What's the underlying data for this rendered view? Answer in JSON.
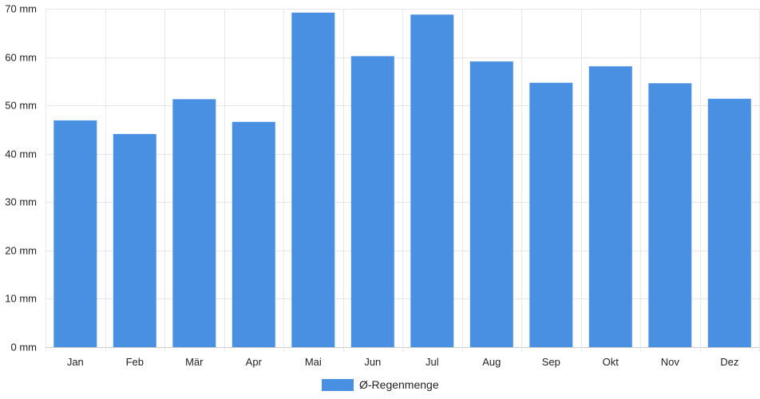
{
  "chart_data": {
    "type": "bar",
    "categories": [
      "Jan",
      "Feb",
      "Mär",
      "Apr",
      "Mai",
      "Jun",
      "Jul",
      "Aug",
      "Sep",
      "Okt",
      "Nov",
      "Dez"
    ],
    "series": [
      {
        "name": "Ø-Regenmenge",
        "values": [
          46.9,
          44.1,
          51.3,
          46.6,
          69.2,
          60.2,
          68.8,
          59.1,
          54.7,
          58.1,
          54.6,
          51.4
        ],
        "color": "#4a90e2"
      }
    ],
    "y_ticks": [
      "0 mm",
      "10 mm",
      "20 mm",
      "30 mm",
      "40 mm",
      "50 mm",
      "60 mm",
      "70 mm"
    ],
    "ylim": [
      0,
      70
    ],
    "y_unit": "mm",
    "grid": true,
    "legend_position": "bottom-center"
  }
}
